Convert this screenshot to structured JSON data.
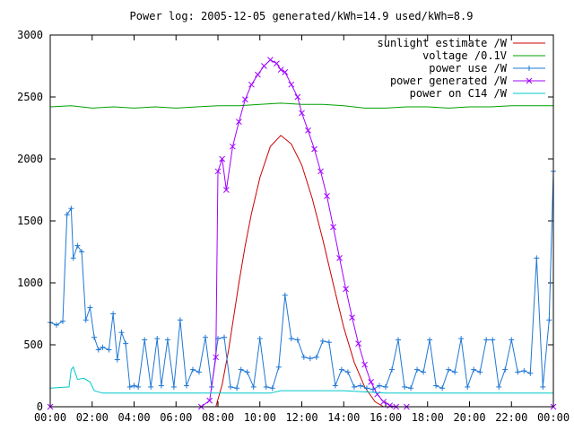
{
  "chart_data": {
    "type": "line",
    "title": "Power log: 2005-12-05 generated/kWh=14.9 used/kWh=8.9",
    "xlabel": "",
    "ylabel": "",
    "xlim": [
      0,
      24
    ],
    "ylim": [
      0,
      3000
    ],
    "x_ticks": [
      "00:00",
      "02:00",
      "04:00",
      "06:00",
      "08:00",
      "10:00",
      "12:00",
      "14:00",
      "16:00",
      "18:00",
      "20:00",
      "22:00",
      "00:00"
    ],
    "y_ticks": [
      0,
      500,
      1000,
      1500,
      2000,
      2500,
      3000
    ],
    "grid": false,
    "legend_position": "top-right",
    "series": [
      {
        "name": "sunlight estimate /W",
        "color": "#cc0000",
        "style": "line",
        "x": [
          7.9,
          8.2,
          8.5,
          8.8,
          9.0,
          9.3,
          9.6,
          10.0,
          10.5,
          11.0,
          11.5,
          12.0,
          12.5,
          13.0,
          13.5,
          14.0,
          14.5,
          15.0,
          15.5,
          15.9
        ],
        "y": [
          0,
          180,
          450,
          780,
          1000,
          1300,
          1560,
          1850,
          2100,
          2190,
          2120,
          1950,
          1680,
          1350,
          990,
          640,
          360,
          160,
          40,
          0
        ]
      },
      {
        "name": "voltage /0.1V",
        "color": "#00a000",
        "style": "line",
        "x": [
          0,
          1,
          2,
          3,
          4,
          5,
          6,
          7,
          8,
          9,
          10,
          11,
          12,
          13,
          14,
          15,
          16,
          17,
          18,
          19,
          20,
          21,
          22,
          23,
          24
        ],
        "y": [
          2420,
          2430,
          2410,
          2420,
          2410,
          2420,
          2410,
          2420,
          2430,
          2430,
          2440,
          2450,
          2440,
          2440,
          2430,
          2410,
          2410,
          2420,
          2420,
          2410,
          2420,
          2420,
          2430,
          2430,
          2430
        ]
      },
      {
        "name": "power use /W",
        "color": "#1f77d4",
        "style": "linepoints-plus",
        "x": [
          0,
          0.3,
          0.6,
          0.8,
          1.0,
          1.1,
          1.3,
          1.5,
          1.7,
          1.9,
          2.1,
          2.3,
          2.5,
          2.8,
          3.0,
          3.2,
          3.4,
          3.6,
          3.8,
          4.0,
          4.2,
          4.5,
          4.8,
          5.1,
          5.3,
          5.6,
          5.9,
          6.2,
          6.5,
          6.8,
          7.1,
          7.4,
          7.7,
          8.0,
          8.3,
          8.6,
          8.9,
          9.1,
          9.4,
          9.7,
          10.0,
          10.3,
          10.6,
          10.9,
          11.2,
          11.5,
          11.8,
          12.1,
          12.4,
          12.7,
          13.0,
          13.3,
          13.6,
          13.9,
          14.2,
          14.5,
          14.8,
          15.1,
          15.4,
          15.7,
          16.0,
          16.3,
          16.6,
          16.9,
          17.2,
          17.5,
          17.8,
          18.1,
          18.4,
          18.7,
          19.0,
          19.3,
          19.6,
          19.9,
          20.2,
          20.5,
          20.8,
          21.1,
          21.4,
          21.7,
          22.0,
          22.3,
          22.6,
          22.9,
          23.2,
          23.5,
          23.8,
          24.0
        ],
        "y": [
          680,
          660,
          690,
          1550,
          1600,
          1200,
          1300,
          1250,
          700,
          800,
          560,
          460,
          480,
          460,
          750,
          380,
          600,
          510,
          160,
          170,
          160,
          540,
          160,
          550,
          170,
          540,
          160,
          700,
          170,
          300,
          280,
          560,
          160,
          550,
          560,
          160,
          150,
          300,
          280,
          160,
          550,
          160,
          150,
          320,
          900,
          550,
          540,
          400,
          390,
          400,
          530,
          520,
          170,
          300,
          280,
          160,
          170,
          150,
          140,
          170,
          160,
          300,
          540,
          160,
          150,
          300,
          280,
          540,
          170,
          150,
          300,
          280,
          550,
          160,
          300,
          280,
          540,
          540,
          160,
          300,
          540,
          280,
          290,
          270,
          1200,
          160,
          700,
          1900
        ]
      },
      {
        "name": "power generated /W",
        "color": "#a000ff",
        "style": "linepoints-x",
        "x": [
          0,
          7.2,
          7.6,
          7.9,
          8.0,
          8.2,
          8.4,
          8.7,
          9.0,
          9.3,
          9.6,
          9.9,
          10.2,
          10.5,
          10.8,
          11.0,
          11.2,
          11.5,
          11.8,
          12.0,
          12.3,
          12.6,
          12.9,
          13.2,
          13.5,
          13.8,
          14.1,
          14.4,
          14.7,
          15.0,
          15.3,
          15.6,
          15.9,
          16.2,
          16.5,
          17.0,
          24.0
        ],
        "y": [
          0,
          0,
          50,
          400,
          1900,
          2000,
          1750,
          2100,
          2300,
          2480,
          2600,
          2680,
          2750,
          2800,
          2770,
          2720,
          2700,
          2600,
          2500,
          2370,
          2230,
          2080,
          1900,
          1700,
          1450,
          1200,
          950,
          720,
          510,
          340,
          200,
          100,
          40,
          10,
          0,
          0,
          0
        ]
      },
      {
        "name": "power on C14 /W",
        "color": "#00c8c8",
        "style": "line",
        "x": [
          0,
          0.9,
          1.0,
          1.1,
          1.3,
          1.6,
          1.9,
          2.1,
          2.5,
          3.5,
          5.0,
          7.0,
          8.0,
          10.5,
          11.0,
          12.0,
          14.0,
          16.0,
          18.0,
          20.0,
          22.0,
          24.0
        ],
        "y": [
          150,
          160,
          300,
          320,
          220,
          230,
          200,
          130,
          110,
          110,
          110,
          110,
          110,
          110,
          130,
          130,
          130,
          110,
          110,
          110,
          110,
          110
        ]
      }
    ]
  }
}
